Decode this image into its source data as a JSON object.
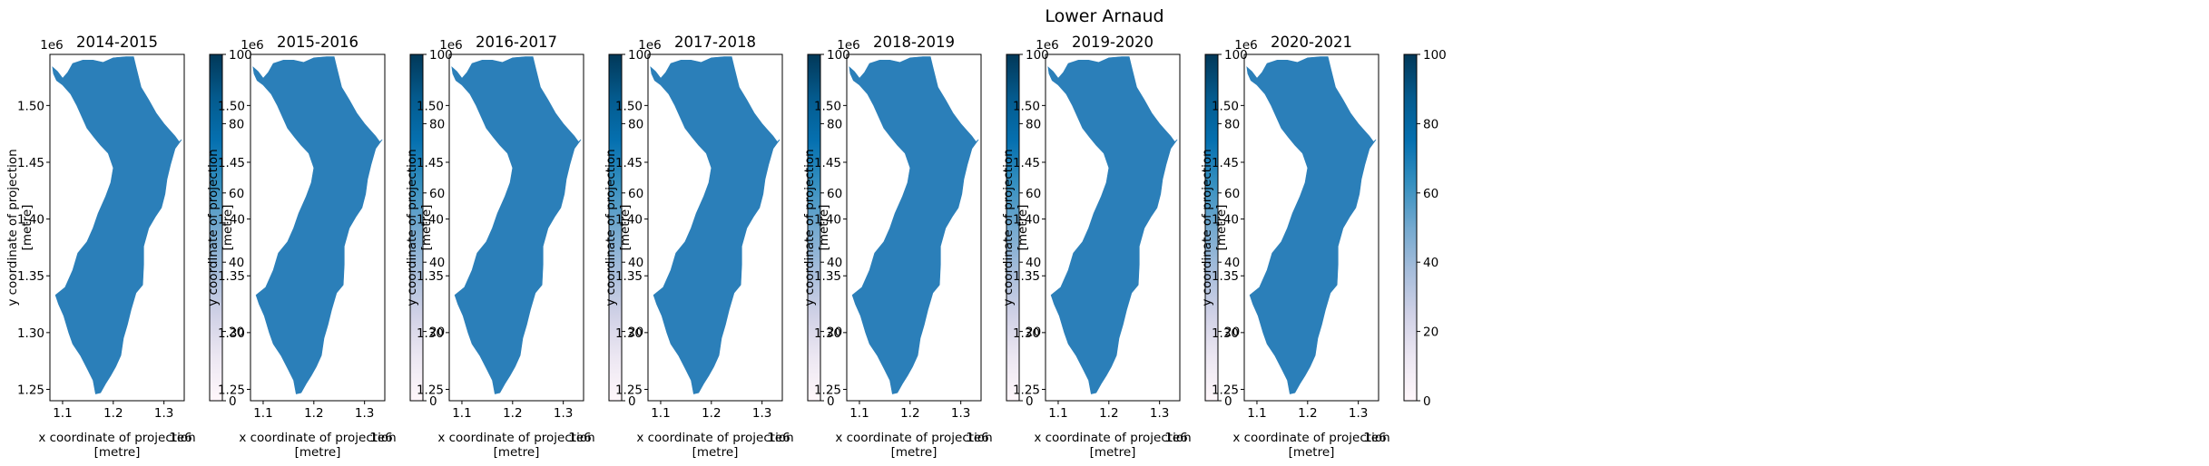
{
  "figure": {
    "title": "Lower Arnaud",
    "colormap": "PuBu",
    "map_fill_color": "#2b7fb9",
    "colormap_stops": [
      "#fff7fb",
      "#ece7f2",
      "#d0d1e6",
      "#a6bddb",
      "#74a9cf",
      "#3690c0",
      "#0570b0",
      "#045a8d",
      "#023858"
    ]
  },
  "chart_data": {
    "type": "heatmap",
    "xlabel": "x coordinate of projection\n[metre]",
    "ylabel": "y coordinate of projection\n[metre]",
    "xlim": [
      1.075,
      1.34
    ],
    "ylim": [
      1.24,
      1.545
    ],
    "x_ticks": [
      "1.1",
      "1.2",
      "1.3"
    ],
    "y_ticks": [
      "1.25",
      "1.30",
      "1.35",
      "1.40",
      "1.45",
      "1.50"
    ],
    "x_offset": "1e6",
    "y_offset": "1e6",
    "colorbar_range": [
      0,
      100
    ],
    "colorbar_ticks": [
      "0",
      "20",
      "40",
      "60",
      "80",
      "100"
    ],
    "region_outline_xy": [
      [
        1.08,
        1.534
      ],
      [
        1.09,
        1.53
      ],
      [
        1.1,
        1.524
      ],
      [
        1.11,
        1.529
      ],
      [
        1.12,
        1.537
      ],
      [
        1.14,
        1.54
      ],
      [
        1.16,
        1.54
      ],
      [
        1.18,
        1.538
      ],
      [
        1.2,
        1.542
      ],
      [
        1.225,
        1.543
      ],
      [
        1.24,
        1.543
      ],
      [
        1.245,
        1.534
      ],
      [
        1.255,
        1.516
      ],
      [
        1.27,
        1.505
      ],
      [
        1.285,
        1.493
      ],
      [
        1.3,
        1.484
      ],
      [
        1.31,
        1.479
      ],
      [
        1.322,
        1.473
      ],
      [
        1.33,
        1.468
      ],
      [
        1.335,
        1.47
      ],
      [
        1.322,
        1.462
      ],
      [
        1.313,
        1.448
      ],
      [
        1.306,
        1.435
      ],
      [
        1.302,
        1.422
      ],
      [
        1.295,
        1.41
      ],
      [
        1.283,
        1.402
      ],
      [
        1.27,
        1.392
      ],
      [
        1.26,
        1.376
      ],
      [
        1.26,
        1.36
      ],
      [
        1.258,
        1.342
      ],
      [
        1.245,
        1.335
      ],
      [
        1.235,
        1.32
      ],
      [
        1.228,
        1.307
      ],
      [
        1.22,
        1.295
      ],
      [
        1.215,
        1.28
      ],
      [
        1.205,
        1.27
      ],
      [
        1.195,
        1.262
      ],
      [
        1.185,
        1.255
      ],
      [
        1.175,
        1.247
      ],
      [
        1.165,
        1.246
      ],
      [
        1.16,
        1.258
      ],
      [
        1.15,
        1.267
      ],
      [
        1.135,
        1.28
      ],
      [
        1.12,
        1.29
      ],
      [
        1.112,
        1.3
      ],
      [
        1.102,
        1.315
      ],
      [
        1.092,
        1.325
      ],
      [
        1.086,
        1.333
      ],
      [
        1.105,
        1.34
      ],
      [
        1.12,
        1.355
      ],
      [
        1.13,
        1.37
      ],
      [
        1.148,
        1.38
      ],
      [
        1.16,
        1.392
      ],
      [
        1.17,
        1.405
      ],
      [
        1.185,
        1.42
      ],
      [
        1.195,
        1.432
      ],
      [
        1.2,
        1.445
      ],
      [
        1.19,
        1.458
      ],
      [
        1.175,
        1.465
      ],
      [
        1.162,
        1.472
      ],
      [
        1.148,
        1.48
      ],
      [
        1.138,
        1.49
      ],
      [
        1.128,
        1.5
      ],
      [
        1.116,
        1.51
      ],
      [
        1.1,
        1.518
      ],
      [
        1.088,
        1.522
      ],
      [
        1.082,
        1.528
      ]
    ],
    "panels": [
      {
        "title": "2014-2015"
      },
      {
        "title": "2015-2016"
      },
      {
        "title": "2016-2017"
      },
      {
        "title": "2017-2018"
      },
      {
        "title": "2018-2019"
      },
      {
        "title": "2019-2020"
      },
      {
        "title": "2020-2021"
      }
    ]
  }
}
